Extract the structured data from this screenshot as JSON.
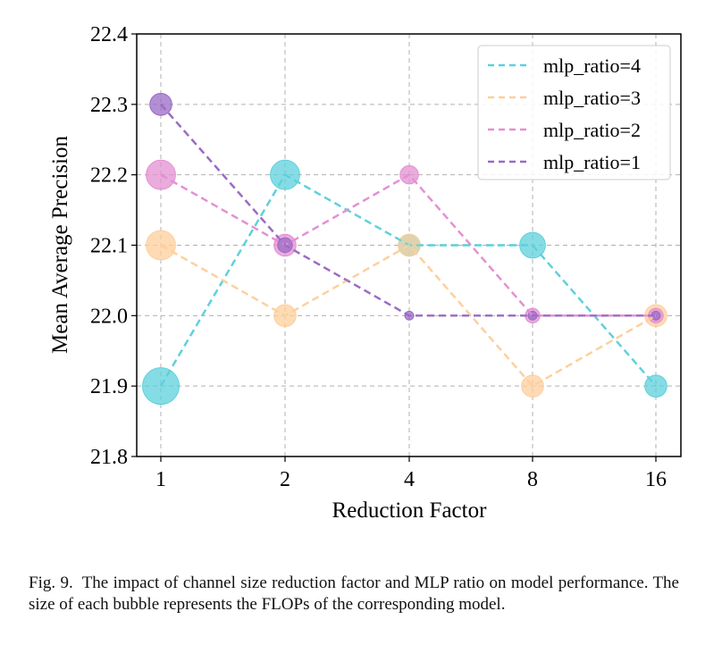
{
  "chart_data": {
    "type": "scatter",
    "subtype": "bubble-line",
    "xlabel": "Reduction Factor",
    "ylabel": "Mean Average Precision",
    "categories": [
      "1",
      "2",
      "4",
      "8",
      "16"
    ],
    "ylim": [
      21.8,
      22.4
    ],
    "yticks": [
      "21.8",
      "21.9",
      "22.0",
      "22.1",
      "22.2",
      "22.3",
      "22.4"
    ],
    "grid": true,
    "legend_position": "top-right",
    "series": [
      {
        "name": "mlp_ratio=4",
        "color": "#5dd0dc",
        "values": [
          21.9,
          22.2,
          22.1,
          22.1,
          21.9
        ],
        "bubble_size": [
          5,
          4,
          3,
          3.5,
          3
        ]
      },
      {
        "name": "mlp_ratio=3",
        "color": "#fdcf9c",
        "values": [
          22.1,
          22.0,
          22.1,
          21.9,
          22.0
        ],
        "bubble_size": [
          4,
          3,
          3,
          3,
          3
        ]
      },
      {
        "name": "mlp_ratio=2",
        "color": "#e38fd2",
        "values": [
          22.2,
          22.1,
          22.2,
          22.0,
          22.0
        ],
        "bubble_size": [
          4,
          3,
          2.5,
          2,
          2
        ]
      },
      {
        "name": "mlp_ratio=1",
        "color": "#9a6ac4",
        "values": [
          22.3,
          22.1,
          22.0,
          22.0,
          22.0
        ],
        "bubble_size": [
          3,
          2,
          1.2,
          1.2,
          1.2
        ]
      }
    ]
  },
  "caption": {
    "label": "Fig. 9.",
    "text": "The impact of channel size reduction factor and MLP ratio on model performance. The size of each bubble represents the FLOPs of the corresponding model."
  }
}
